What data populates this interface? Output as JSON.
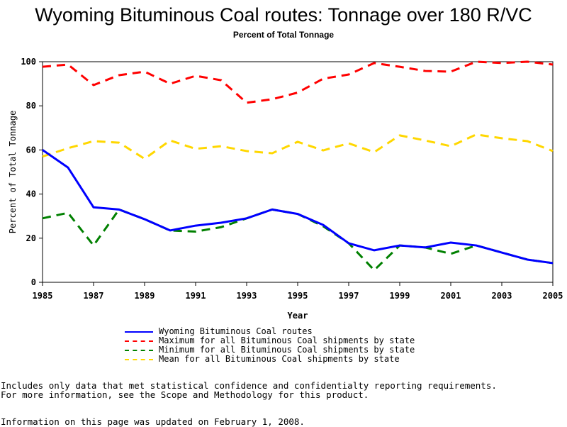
{
  "chart_data": {
    "type": "line",
    "title": "Wyoming Bituminous Coal routes: Tonnage over 180 R/VC",
    "subtitle": "Percent of Total Tonnage",
    "xlabel": "Year",
    "ylabel": "Percent of Total Tonnage",
    "xlim": [
      1985,
      2005
    ],
    "ylim": [
      0,
      100
    ],
    "xticks": [
      "1985",
      "1987",
      "1989",
      "1991",
      "1993",
      "1995",
      "1997",
      "1999",
      "2001",
      "2003",
      "2005"
    ],
    "yticks": [
      "0",
      "20",
      "40",
      "60",
      "80",
      "100"
    ],
    "grid": false,
    "legend_position": "bottom",
    "x": [
      1985,
      1986,
      1987,
      1988,
      1989,
      1990,
      1991,
      1992,
      1993,
      1994,
      1995,
      1996,
      1997,
      1998,
      1999,
      2000,
      2001,
      2002,
      2003,
      2004,
      2005
    ],
    "series": [
      {
        "name": "Wyoming Bituminous Coal routes",
        "color": "#0000ff",
        "style": "solid",
        "values": [
          60,
          52,
          34,
          33,
          28.6,
          23.5,
          25.7,
          27,
          29,
          33,
          31,
          26,
          17.7,
          14.5,
          16.7,
          15.8,
          18,
          16.7,
          13.5,
          10.3,
          8.7
        ]
      },
      {
        "name": "Maximum for all Bituminous Coal shipments by state",
        "color": "#ff0000",
        "style": "dashed",
        "values": [
          97.7,
          98.7,
          89.4,
          93.9,
          95.5,
          90,
          93.6,
          91.6,
          81.4,
          83,
          86,
          92.3,
          94.2,
          99.4,
          97.7,
          95.8,
          95.5,
          100,
          99.4,
          100,
          98.7
        ]
      },
      {
        "name": "Minimum for all Bituminous Coal shipments by state",
        "color": "#008000",
        "style": "dashed",
        "values": [
          29,
          31.5,
          16.7,
          33,
          28.6,
          23.5,
          23,
          25,
          29,
          33,
          31,
          25.4,
          17.7,
          5.5,
          16.7,
          15.8,
          12.9,
          16.7,
          13.5,
          10.3,
          8.7
        ]
      },
      {
        "name": "Mean for all Bituminous Coal shipments by state",
        "color": "#ffd700",
        "style": "dashed",
        "values": [
          57,
          60.8,
          64,
          63.3,
          56,
          64.3,
          60.5,
          61.7,
          59.5,
          58.5,
          63.7,
          59.8,
          63,
          59,
          66.6,
          64.3,
          61.7,
          67,
          65.3,
          64,
          59.5
        ]
      }
    ]
  },
  "footer": {
    "note1": "Includes only data that met statistical confidence and confidentialty reporting requirements.",
    "note2": "For more information, see the Scope and Methodology for this product.",
    "updated": "Information on this page was updated on February 1, 2008."
  }
}
